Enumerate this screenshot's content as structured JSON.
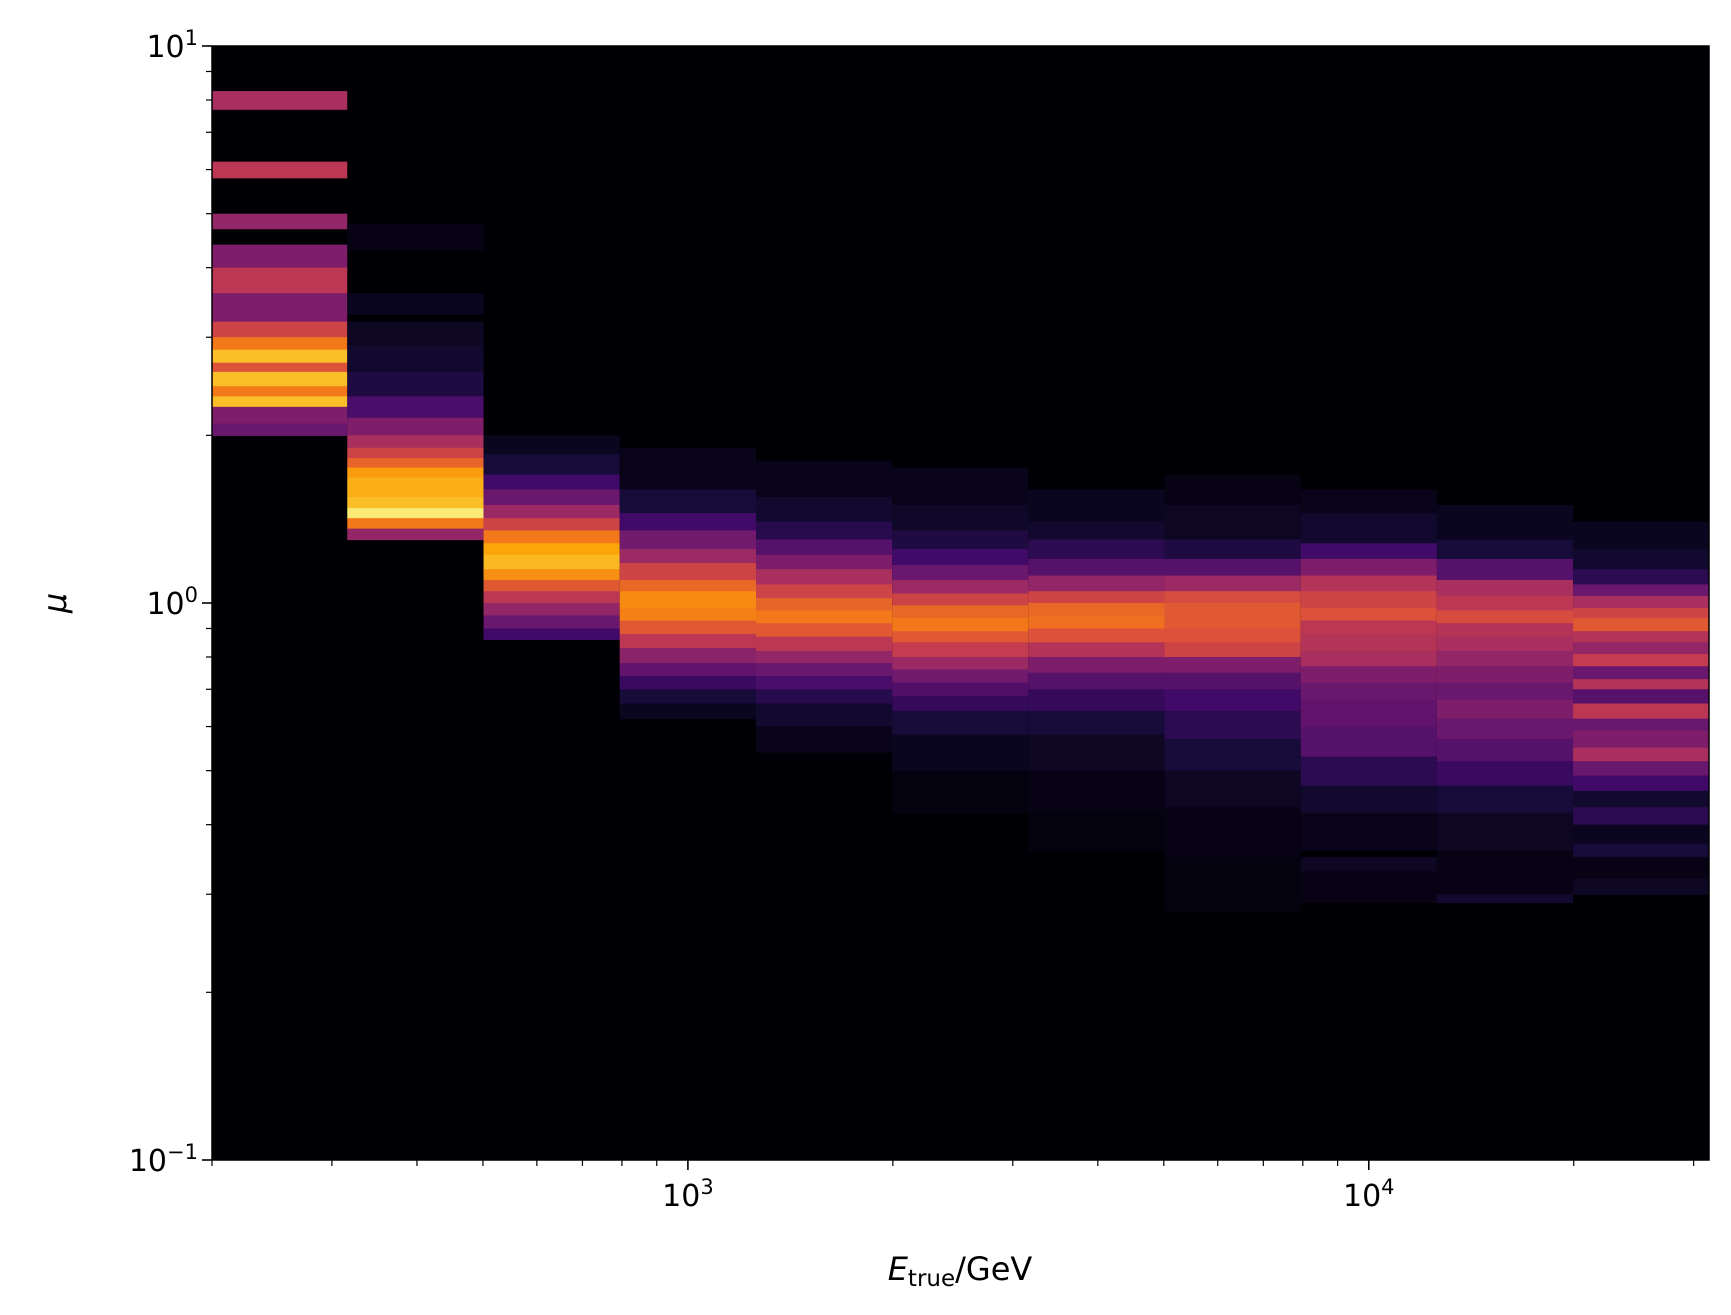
{
  "chart_data": {
    "type": "heatmap",
    "colormap": "inferno",
    "xscale": "log",
    "yscale": "log",
    "xlim": [
      200,
      31600
    ],
    "ylim": [
      0.1,
      10
    ],
    "xlabel_main": "E",
    "xlabel_sub": "true",
    "xlabel_unit": "/GeV",
    "ylabel": "μ",
    "grid": false,
    "x_tick_labels": [
      {
        "value": 1000,
        "base": "10",
        "exp": "3"
      },
      {
        "value": 10000,
        "base": "10",
        "exp": "4"
      }
    ],
    "y_tick_labels": [
      {
        "value": 0.1,
        "base": "10",
        "exp": "−1"
      },
      {
        "value": 1,
        "base": "10",
        "exp": "0"
      },
      {
        "value": 10,
        "base": "10",
        "exp": "1"
      }
    ],
    "x_bin_edges": [
      200,
      316,
      501,
      794,
      1259,
      1995,
      3162,
      5012,
      7943,
      12589,
      19953,
      31623
    ],
    "columns": [
      {
        "cells": [
          [
            7.7,
            8.3,
            0.45
          ],
          [
            5.8,
            6.2,
            0.5
          ],
          [
            4.7,
            5.0,
            0.4
          ],
          [
            4.0,
            4.4,
            0.35
          ],
          [
            3.6,
            4.0,
            0.5
          ],
          [
            3.2,
            3.6,
            0.35
          ],
          [
            3.0,
            3.2,
            0.55
          ],
          [
            2.85,
            3.0,
            0.7
          ],
          [
            2.7,
            2.85,
            0.85
          ],
          [
            2.6,
            2.7,
            0.6
          ],
          [
            2.45,
            2.6,
            0.85
          ],
          [
            2.35,
            2.45,
            0.7
          ],
          [
            2.25,
            2.35,
            0.85
          ],
          [
            2.1,
            2.25,
            0.35
          ],
          [
            2.0,
            2.1,
            0.3
          ]
        ]
      },
      {
        "cells": [
          [
            4.3,
            4.8,
            0.03
          ],
          [
            3.3,
            3.6,
            0.05
          ],
          [
            2.9,
            3.2,
            0.06
          ],
          [
            2.6,
            2.9,
            0.08
          ],
          [
            2.35,
            2.6,
            0.12
          ],
          [
            2.15,
            2.35,
            0.22
          ],
          [
            2.0,
            2.15,
            0.35
          ],
          [
            1.9,
            2.0,
            0.45
          ],
          [
            1.82,
            1.9,
            0.55
          ],
          [
            1.75,
            1.82,
            0.65
          ],
          [
            1.68,
            1.75,
            0.78
          ],
          [
            1.55,
            1.68,
            0.82
          ],
          [
            1.48,
            1.55,
            0.85
          ],
          [
            1.42,
            1.48,
            0.95
          ],
          [
            1.36,
            1.42,
            0.7
          ],
          [
            1.3,
            1.36,
            0.4
          ]
        ]
      },
      {
        "cells": [
          [
            1.85,
            2.0,
            0.05
          ],
          [
            1.7,
            1.85,
            0.1
          ],
          [
            1.6,
            1.7,
            0.2
          ],
          [
            1.5,
            1.6,
            0.3
          ],
          [
            1.42,
            1.5,
            0.42
          ],
          [
            1.35,
            1.42,
            0.55
          ],
          [
            1.28,
            1.35,
            0.7
          ],
          [
            1.22,
            1.28,
            0.8
          ],
          [
            1.15,
            1.22,
            0.84
          ],
          [
            1.1,
            1.15,
            0.75
          ],
          [
            1.05,
            1.1,
            0.62
          ],
          [
            1.0,
            1.05,
            0.5
          ],
          [
            0.95,
            1.0,
            0.4
          ],
          [
            0.9,
            0.95,
            0.3
          ],
          [
            0.86,
            0.9,
            0.2
          ]
        ]
      },
      {
        "cells": [
          [
            1.6,
            1.9,
            0.04
          ],
          [
            1.45,
            1.6,
            0.1
          ],
          [
            1.35,
            1.45,
            0.2
          ],
          [
            1.25,
            1.35,
            0.32
          ],
          [
            1.18,
            1.25,
            0.42
          ],
          [
            1.1,
            1.18,
            0.55
          ],
          [
            1.05,
            1.1,
            0.66
          ],
          [
            0.98,
            1.05,
            0.74
          ],
          [
            0.93,
            0.98,
            0.72
          ],
          [
            0.88,
            0.93,
            0.62
          ],
          [
            0.83,
            0.88,
            0.5
          ],
          [
            0.78,
            0.83,
            0.38
          ],
          [
            0.74,
            0.78,
            0.28
          ],
          [
            0.7,
            0.74,
            0.18
          ],
          [
            0.66,
            0.7,
            0.1
          ],
          [
            0.62,
            0.66,
            0.05
          ]
        ]
      },
      {
        "cells": [
          [
            1.55,
            1.8,
            0.04
          ],
          [
            1.4,
            1.55,
            0.08
          ],
          [
            1.3,
            1.4,
            0.14
          ],
          [
            1.22,
            1.3,
            0.25
          ],
          [
            1.15,
            1.22,
            0.35
          ],
          [
            1.08,
            1.15,
            0.45
          ],
          [
            1.02,
            1.08,
            0.55
          ],
          [
            0.97,
            1.02,
            0.65
          ],
          [
            0.92,
            0.97,
            0.7
          ],
          [
            0.87,
            0.92,
            0.62
          ],
          [
            0.82,
            0.87,
            0.5
          ],
          [
            0.78,
            0.82,
            0.4
          ],
          [
            0.74,
            0.78,
            0.3
          ],
          [
            0.7,
            0.74,
            0.22
          ],
          [
            0.66,
            0.7,
            0.14
          ],
          [
            0.6,
            0.66,
            0.08
          ],
          [
            0.54,
            0.6,
            0.04
          ]
        ]
      },
      {
        "cells": [
          [
            1.5,
            1.75,
            0.04
          ],
          [
            1.35,
            1.5,
            0.07
          ],
          [
            1.25,
            1.35,
            0.12
          ],
          [
            1.17,
            1.25,
            0.2
          ],
          [
            1.1,
            1.17,
            0.3
          ],
          [
            1.04,
            1.1,
            0.42
          ],
          [
            0.99,
            1.04,
            0.55
          ],
          [
            0.94,
            0.99,
            0.66
          ],
          [
            0.89,
            0.94,
            0.7
          ],
          [
            0.85,
            0.89,
            0.62
          ],
          [
            0.8,
            0.85,
            0.52
          ],
          [
            0.76,
            0.8,
            0.42
          ],
          [
            0.72,
            0.76,
            0.32
          ],
          [
            0.68,
            0.72,
            0.24
          ],
          [
            0.64,
            0.68,
            0.17
          ],
          [
            0.58,
            0.64,
            0.1
          ],
          [
            0.5,
            0.58,
            0.05
          ],
          [
            0.42,
            0.5,
            0.02
          ]
        ]
      },
      {
        "cells": [
          [
            1.4,
            1.6,
            0.05
          ],
          [
            1.3,
            1.4,
            0.08
          ],
          [
            1.2,
            1.3,
            0.15
          ],
          [
            1.12,
            1.2,
            0.25
          ],
          [
            1.05,
            1.12,
            0.4
          ],
          [
            1.0,
            1.05,
            0.55
          ],
          [
            0.95,
            1.0,
            0.66
          ],
          [
            0.9,
            0.95,
            0.68
          ],
          [
            0.85,
            0.9,
            0.6
          ],
          [
            0.8,
            0.85,
            0.48
          ],
          [
            0.75,
            0.8,
            0.35
          ],
          [
            0.7,
            0.75,
            0.25
          ],
          [
            0.64,
            0.7,
            0.17
          ],
          [
            0.58,
            0.64,
            0.1
          ],
          [
            0.5,
            0.58,
            0.06
          ],
          [
            0.42,
            0.5,
            0.03
          ],
          [
            0.36,
            0.42,
            0.02
          ]
        ]
      },
      {
        "cells": [
          [
            1.5,
            1.7,
            0.03
          ],
          [
            1.3,
            1.5,
            0.06
          ],
          [
            1.2,
            1.3,
            0.12
          ],
          [
            1.12,
            1.2,
            0.25
          ],
          [
            1.05,
            1.12,
            0.42
          ],
          [
            1.0,
            1.05,
            0.58
          ],
          [
            0.95,
            1.0,
            0.62
          ],
          [
            0.9,
            0.95,
            0.62
          ],
          [
            0.85,
            0.9,
            0.6
          ],
          [
            0.8,
            0.85,
            0.55
          ],
          [
            0.75,
            0.8,
            0.35
          ],
          [
            0.7,
            0.75,
            0.25
          ],
          [
            0.64,
            0.7,
            0.2
          ],
          [
            0.57,
            0.64,
            0.15
          ],
          [
            0.5,
            0.57,
            0.1
          ],
          [
            0.43,
            0.5,
            0.06
          ],
          [
            0.35,
            0.43,
            0.03
          ],
          [
            0.28,
            0.35,
            0.02
          ]
        ]
      },
      {
        "cells": [
          [
            1.45,
            1.6,
            0.04
          ],
          [
            1.28,
            1.45,
            0.08
          ],
          [
            1.2,
            1.28,
            0.2
          ],
          [
            1.12,
            1.2,
            0.35
          ],
          [
            1.05,
            1.12,
            0.48
          ],
          [
            0.98,
            1.05,
            0.55
          ],
          [
            0.93,
            0.98,
            0.6
          ],
          [
            0.88,
            0.93,
            0.5
          ],
          [
            0.82,
            0.88,
            0.48
          ],
          [
            0.77,
            0.82,
            0.45
          ],
          [
            0.72,
            0.77,
            0.35
          ],
          [
            0.67,
            0.72,
            0.3
          ],
          [
            0.6,
            0.67,
            0.28
          ],
          [
            0.53,
            0.6,
            0.25
          ],
          [
            0.47,
            0.53,
            0.15
          ],
          [
            0.42,
            0.47,
            0.08
          ],
          [
            0.36,
            0.42,
            0.04
          ],
          [
            0.33,
            0.35,
            0.06
          ],
          [
            0.29,
            0.33,
            0.03
          ]
        ]
      },
      {
        "cells": [
          [
            1.3,
            1.5,
            0.05
          ],
          [
            1.2,
            1.3,
            0.1
          ],
          [
            1.1,
            1.2,
            0.25
          ],
          [
            1.03,
            1.1,
            0.45
          ],
          [
            0.97,
            1.03,
            0.5
          ],
          [
            0.92,
            0.97,
            0.58
          ],
          [
            0.87,
            0.92,
            0.48
          ],
          [
            0.82,
            0.87,
            0.45
          ],
          [
            0.77,
            0.82,
            0.4
          ],
          [
            0.72,
            0.77,
            0.35
          ],
          [
            0.67,
            0.72,
            0.3
          ],
          [
            0.62,
            0.67,
            0.35
          ],
          [
            0.57,
            0.62,
            0.3
          ],
          [
            0.52,
            0.57,
            0.25
          ],
          [
            0.47,
            0.52,
            0.18
          ],
          [
            0.42,
            0.47,
            0.1
          ],
          [
            0.36,
            0.42,
            0.06
          ],
          [
            0.3,
            0.36,
            0.03
          ],
          [
            0.29,
            0.3,
            0.08
          ]
        ]
      },
      {
        "cells": [
          [
            1.25,
            1.4,
            0.05
          ],
          [
            1.15,
            1.25,
            0.08
          ],
          [
            1.08,
            1.15,
            0.15
          ],
          [
            1.03,
            1.08,
            0.3
          ],
          [
            0.98,
            1.03,
            0.45
          ],
          [
            0.94,
            0.98,
            0.55
          ],
          [
            0.89,
            0.94,
            0.62
          ],
          [
            0.85,
            0.89,
            0.48
          ],
          [
            0.81,
            0.85,
            0.4
          ],
          [
            0.77,
            0.81,
            0.52
          ],
          [
            0.73,
            0.77,
            0.3
          ],
          [
            0.7,
            0.73,
            0.48
          ],
          [
            0.66,
            0.7,
            0.25
          ],
          [
            0.62,
            0.66,
            0.5
          ],
          [
            0.59,
            0.62,
            0.3
          ],
          [
            0.55,
            0.59,
            0.35
          ],
          [
            0.52,
            0.55,
            0.45
          ],
          [
            0.49,
            0.52,
            0.3
          ],
          [
            0.46,
            0.49,
            0.2
          ],
          [
            0.43,
            0.46,
            0.08
          ],
          [
            0.4,
            0.43,
            0.15
          ],
          [
            0.37,
            0.4,
            0.05
          ],
          [
            0.35,
            0.37,
            0.1
          ],
          [
            0.32,
            0.35,
            0.03
          ],
          [
            0.3,
            0.32,
            0.06
          ]
        ]
      }
    ]
  }
}
